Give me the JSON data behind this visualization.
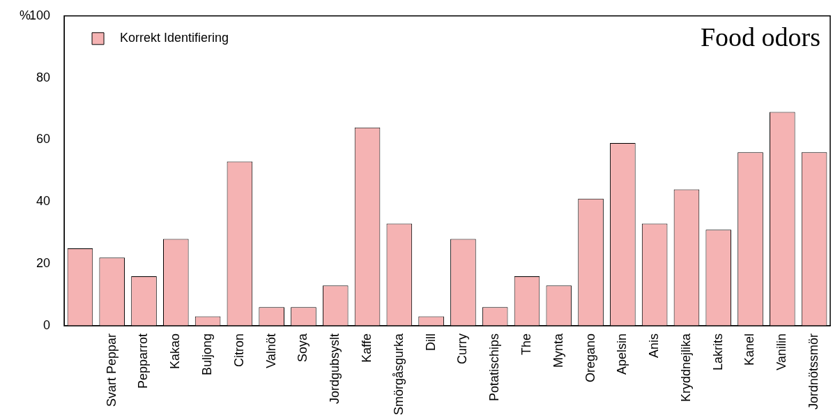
{
  "chart_data": {
    "type": "bar",
    "title": "Food odors",
    "ylabel": "%",
    "categories": [
      null,
      "Svart Peppar",
      "Pepparrot",
      "Kakao",
      "Buljong",
      "Citron",
      "Valnöt",
      "Soya",
      "Jordgubsyslt",
      "Kaffe",
      "Smörgåsgurka",
      "Dill",
      "Curry",
      "Potatischips",
      "The",
      "Mynta",
      "Oregano",
      "Apelsin",
      "Anis",
      "Kryddnejlika",
      "Lakrits",
      "Kanel",
      "Vanilin",
      "Jordnötssmör"
    ],
    "series": [
      {
        "name": "Korrekt Identifiering",
        "color": "#f5b3b3",
        "values": [
          25,
          22,
          16,
          28,
          3,
          53,
          6,
          6,
          13,
          64,
          33,
          3,
          28,
          6,
          16,
          13,
          41,
          59,
          33,
          44,
          31,
          56,
          69,
          56
        ]
      }
    ],
    "ylim": [
      0,
      100
    ],
    "yticks": [
      0,
      20,
      40,
      60,
      80,
      100
    ],
    "grid": false,
    "legend": "top left"
  }
}
